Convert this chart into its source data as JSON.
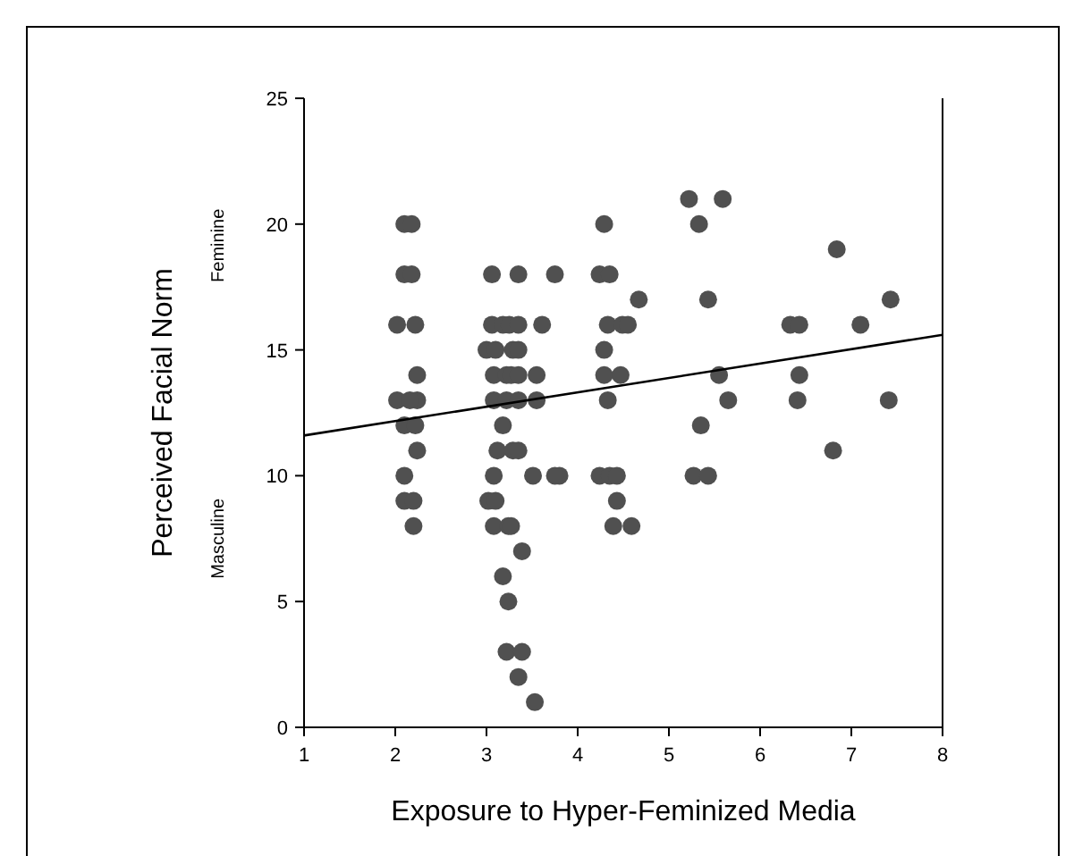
{
  "chart_data": {
    "type": "scatter",
    "xlabel": "Exposure to Hyper-Feminized Media",
    "ylabel": "Perceived Facial Norm",
    "annotations": [
      "Feminine",
      "Masculine"
    ],
    "xlim": [
      1,
      8
    ],
    "xticks": [
      1,
      2,
      3,
      4,
      5,
      6,
      7,
      8
    ],
    "ylim": [
      0,
      25
    ],
    "yticks": [
      0,
      5,
      10,
      15,
      20,
      25
    ],
    "grid": false,
    "series": [
      {
        "marker": "circle",
        "color": "#505050",
        "x": [
          2.02,
          2.1,
          2.18,
          2.1,
          2.18,
          2.02,
          2.24,
          2.22,
          2.1,
          2.16,
          2.22,
          2.1,
          2.24,
          2.24,
          2.1,
          2.2,
          2.2,
          3.06,
          3.35,
          3.06,
          3.18,
          3.25,
          3.35,
          3.61,
          3.0,
          3.1,
          3.29,
          3.35,
          3.08,
          3.22,
          3.27,
          3.35,
          3.55,
          3.08,
          3.22,
          3.35,
          3.55,
          3.18,
          3.12,
          3.29,
          3.35,
          3.08,
          3.51,
          3.8,
          3.02,
          3.1,
          3.08,
          3.24,
          3.27,
          3.39,
          3.18,
          3.24,
          3.22,
          3.39,
          3.35,
          3.53,
          3.75,
          3.75,
          4.29,
          4.24,
          4.35,
          4.67,
          4.33,
          4.49,
          4.55,
          4.29,
          4.29,
          4.47,
          4.33,
          4.24,
          4.35,
          4.43,
          4.43,
          4.39,
          4.59,
          5.22,
          5.59,
          5.33,
          5.43,
          5.55,
          5.65,
          5.35,
          5.27,
          5.43,
          6.33,
          6.43,
          6.43,
          6.41,
          6.84,
          6.8,
          7.1,
          7.43,
          7.41
        ],
        "values": [
          16,
          20,
          20,
          18,
          18,
          13,
          13,
          16,
          12,
          13,
          12,
          10,
          14,
          11,
          9,
          9,
          8,
          18,
          18,
          16,
          16,
          16,
          16,
          16,
          15,
          15,
          15,
          15,
          14,
          14,
          14,
          14,
          14,
          13,
          13,
          13,
          13,
          12,
          11,
          11,
          11,
          10,
          10,
          10,
          9,
          9,
          8,
          8,
          8,
          7,
          6,
          5,
          3,
          3,
          2,
          1,
          18,
          10,
          20,
          18,
          18,
          17,
          16,
          16,
          16,
          15,
          14,
          14,
          13,
          10,
          10,
          10,
          9,
          8,
          8,
          21,
          21,
          20,
          17,
          14,
          13,
          12,
          10,
          10,
          16,
          16,
          14,
          13,
          19,
          11,
          16,
          17,
          13
        ]
      },
      {
        "type": "line",
        "color": "#000000",
        "x": [
          1,
          8
        ],
        "values": [
          11.6,
          15.6
        ]
      }
    ]
  }
}
